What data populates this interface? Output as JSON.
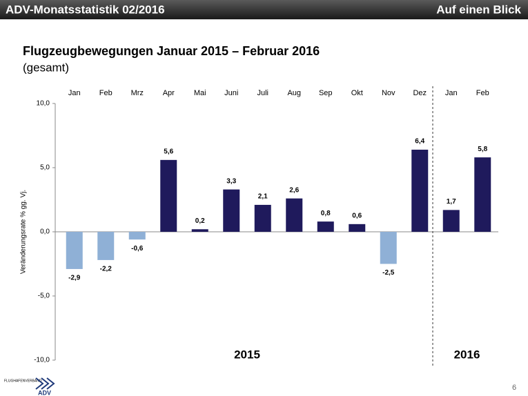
{
  "header": {
    "title": "ADV-Monatsstatistik 02/2016",
    "right": "Auf einen Blick"
  },
  "chart_data": {
    "type": "bar",
    "title": "Flugzeugbewegungen Januar 2015 – Februar 2016",
    "subtitle": "(gesamt)",
    "y_label": "Veränderungsrate % gg. Vj.",
    "categories": [
      "Jan",
      "Feb",
      "Mrz",
      "Apr",
      "Mai",
      "Juni",
      "Juli",
      "Aug",
      "Sep",
      "Okt",
      "Nov",
      "Dez",
      "Jan",
      "Feb"
    ],
    "values": [
      -2.9,
      -2.2,
      -0.6,
      5.6,
      0.2,
      3.3,
      2.1,
      2.6,
      0.8,
      0.6,
      -2.5,
      6.4,
      1.7,
      5.8
    ],
    "value_labels": [
      "-2,9",
      "-2,2",
      "-0,6",
      "5,6",
      "0,2",
      "3,3",
      "2,1",
      "2,6",
      "0,8",
      "0,6",
      "-2,5",
      "6,4",
      "1,7",
      "5,8"
    ],
    "color": "#1f1a5c",
    "negative_color": "#8fb0d6",
    "ylim": [
      -10,
      10
    ],
    "yticks": [
      {
        "value": -10,
        "label": "-10,0"
      },
      {
        "value": -5,
        "label": "-5,0"
      },
      {
        "value": 0,
        "label": "0,0"
      },
      {
        "value": 5,
        "label": "5,0"
      },
      {
        "value": 10,
        "label": "10,0"
      }
    ],
    "groups": [
      {
        "label": "2015",
        "span": 12
      },
      {
        "label": "2016",
        "span": 2
      }
    ]
  },
  "footer": {
    "logo_text": "FLUGHAFENVERBAND",
    "logo": "ADV",
    "page": "6"
  }
}
